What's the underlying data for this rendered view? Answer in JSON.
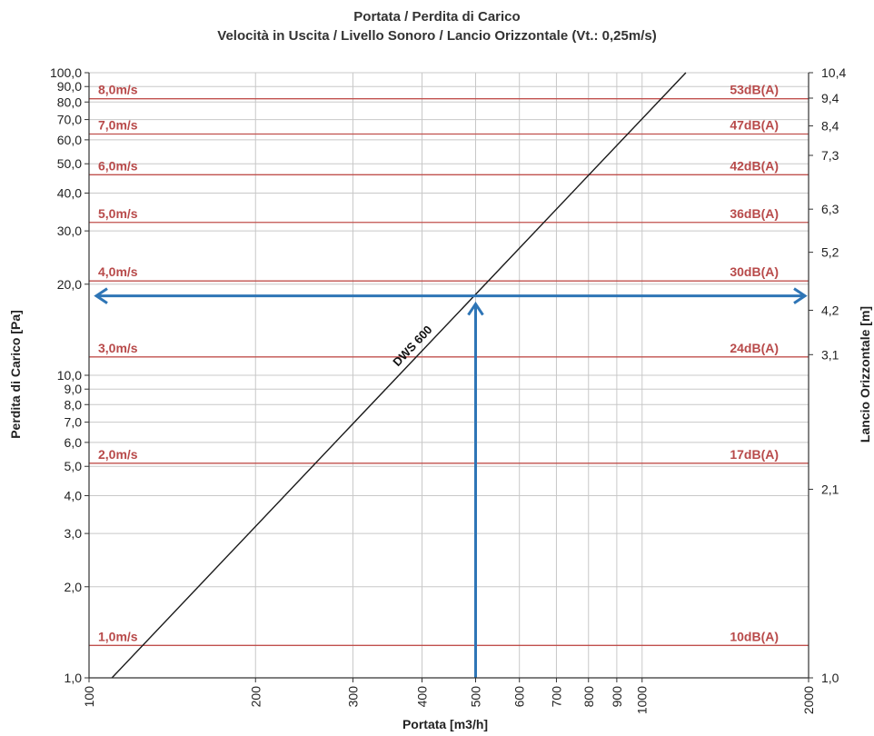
{
  "chart_data": {
    "type": "line",
    "title": "Portata / Perdita di Carico",
    "subtitle": "Velocità in Uscita / Livello Sonoro / Lancio Orizzontale (Vt.: 0,25m/s)",
    "xlabel": "Portata [m3/h]",
    "ylabel": "Perdita di Carico [Pa]",
    "y2label": "Lancio Orizzontale [m]",
    "x_scale": "log",
    "y_scale": "log",
    "xlim": [
      100,
      2000
    ],
    "ylim": [
      1.0,
      100.0
    ],
    "x_ticks": [
      {
        "value": 100,
        "label": "100"
      },
      {
        "value": 200,
        "label": "200"
      },
      {
        "value": 300,
        "label": "300"
      },
      {
        "value": 400,
        "label": "400"
      },
      {
        "value": 500,
        "label": "500"
      },
      {
        "value": 600,
        "label": "600"
      },
      {
        "value": 700,
        "label": "700"
      },
      {
        "value": 800,
        "label": "800"
      },
      {
        "value": 900,
        "label": "900"
      },
      {
        "value": 1000,
        "label": "1000"
      },
      {
        "value": 2000,
        "label": "2000"
      }
    ],
    "y_ticks": [
      {
        "value": 1,
        "label": "1,0"
      },
      {
        "value": 2,
        "label": "2,0"
      },
      {
        "value": 3,
        "label": "3,0"
      },
      {
        "value": 4,
        "label": "4,0"
      },
      {
        "value": 5,
        "label": "5,0"
      },
      {
        "value": 6,
        "label": "6,0"
      },
      {
        "value": 7,
        "label": "7,0"
      },
      {
        "value": 8,
        "label": "8,0"
      },
      {
        "value": 9,
        "label": "9,0"
      },
      {
        "value": 10,
        "label": "10,0"
      },
      {
        "value": 20,
        "label": "20,0"
      },
      {
        "value": 30,
        "label": "30,0"
      },
      {
        "value": 40,
        "label": "40,0"
      },
      {
        "value": 50,
        "label": "50,0"
      },
      {
        "value": 60,
        "label": "60,0"
      },
      {
        "value": 70,
        "label": "70,0"
      },
      {
        "value": 80,
        "label": "80,0"
      },
      {
        "value": 90,
        "label": "90,0"
      },
      {
        "value": 100,
        "label": "100,0"
      }
    ],
    "y2_ticks": [
      {
        "at_y": 1,
        "label": "1,0"
      },
      {
        "at_y": 4.2,
        "label": "2,1"
      },
      {
        "at_y": 11.7,
        "label": "3,1"
      },
      {
        "at_y": 16.4,
        "label": "4,2"
      },
      {
        "at_y": 25.5,
        "label": "5,2"
      },
      {
        "at_y": 35.4,
        "label": "6,3"
      },
      {
        "at_y": 53.3,
        "label": "7,3"
      },
      {
        "at_y": 66.7,
        "label": "8,4"
      },
      {
        "at_y": 82.4,
        "label": "9,4"
      },
      {
        "at_y": 100,
        "label": "10,4"
      }
    ],
    "velocity_lines": [
      {
        "y": 1.28,
        "velocity": "1,0m/s",
        "sound": "10dB(A)"
      },
      {
        "y": 5.12,
        "velocity": "2,0m/s",
        "sound": "17dB(A)"
      },
      {
        "y": 11.5,
        "velocity": "3,0m/s",
        "sound": "24dB(A)"
      },
      {
        "y": 20.5,
        "velocity": "4,0m/s",
        "sound": "30dB(A)"
      },
      {
        "y": 32.0,
        "velocity": "5,0m/s",
        "sound": "36dB(A)"
      },
      {
        "y": 46.0,
        "velocity": "6,0m/s",
        "sound": "42dB(A)"
      },
      {
        "y": 62.7,
        "velocity": "7,0m/s",
        "sound": "47dB(A)"
      },
      {
        "y": 82.0,
        "velocity": "8,0m/s",
        "sound": "53dB(A)"
      }
    ],
    "series": [
      {
        "name": "DWS 600",
        "x": [
          110,
          1200
        ],
        "y": [
          1.0,
          100.0
        ]
      }
    ],
    "example_reading": {
      "x": 500,
      "y": 18.3
    },
    "grid": true,
    "colors": {
      "velocity_line": "#c0504d",
      "velocity_text": "#b84a4a",
      "series_line": "#1a1a1a",
      "arrow": "#2e75b6",
      "grid": "#c8c8c8",
      "axis": "#333333"
    }
  }
}
